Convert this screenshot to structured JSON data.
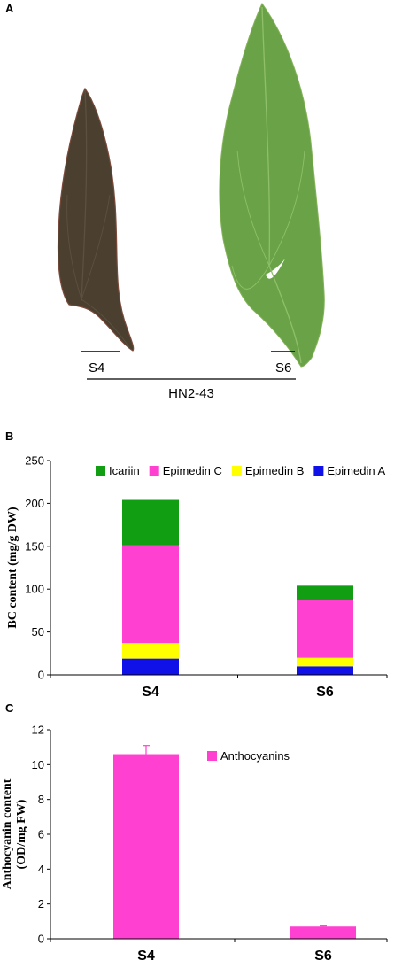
{
  "panel_a": {
    "letter": "A",
    "leaf_labels": [
      "S4",
      "S6"
    ],
    "group_label": "HN2-43",
    "leaf_colors": {
      "s4_leaf": "#4a3f2e",
      "s6_leaf": "#6aa347"
    }
  },
  "panel_b": {
    "letter": "B"
  },
  "panel_c": {
    "letter": "C"
  },
  "chart_data": [
    {
      "type": "bar",
      "stacked": true,
      "ylabel": "BC content (mg/g DW)",
      "ylim": [
        0,
        250
      ],
      "yticks": [
        0,
        50,
        100,
        150,
        200,
        250
      ],
      "categories": [
        "S4",
        "S6"
      ],
      "legend_position": "top",
      "series": [
        {
          "name": "Epimedin A",
          "color": "#1010e8",
          "values": [
            19,
            10
          ]
        },
        {
          "name": "Epimedin B",
          "color": "#ffff00",
          "values": [
            18,
            10
          ]
        },
        {
          "name": "Epimedin C",
          "color": "#ff40d0",
          "values": [
            114,
            67
          ]
        },
        {
          "name": "Icariin",
          "color": "#129e12",
          "values": [
            53,
            17
          ]
        }
      ],
      "legend_order": [
        "Icariin",
        "Epimedin C",
        "Epimedin B",
        "Epimedin A"
      ],
      "grid": false
    },
    {
      "type": "bar",
      "ylabel_lines": [
        "Anthocyanin content",
        "(OD/mg FW)"
      ],
      "ylim": [
        0,
        12
      ],
      "yticks": [
        0,
        2,
        4,
        6,
        8,
        10,
        12
      ],
      "categories": [
        "S4",
        "S6"
      ],
      "legend_position": "top",
      "series": [
        {
          "name": "Anthocyanins",
          "color": "#ff40d0",
          "values": [
            10.6,
            0.7
          ],
          "error": [
            0.5,
            0.03
          ]
        }
      ],
      "grid": false
    }
  ]
}
